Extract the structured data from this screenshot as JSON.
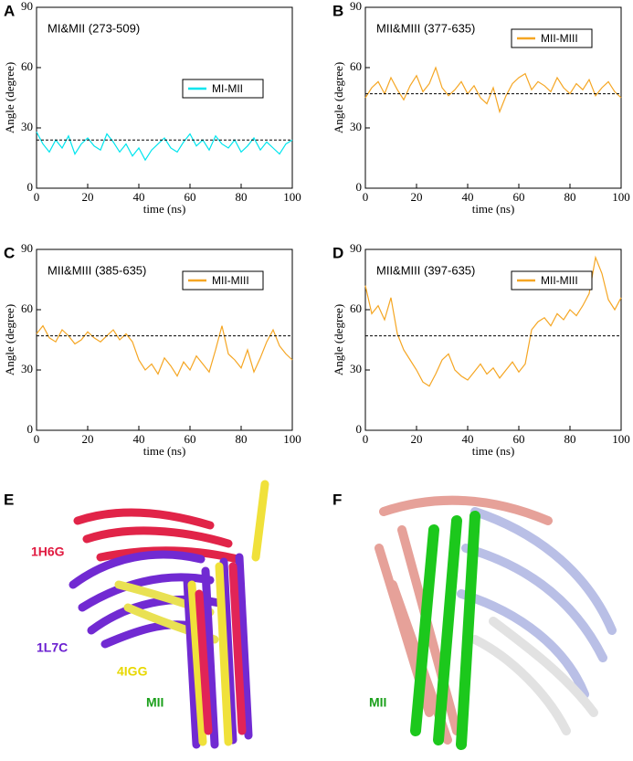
{
  "chart_data": [
    {
      "type": "line",
      "letter": "A",
      "title": "MI&MII (273-509)",
      "xlabel": "time (ns)",
      "ylabel": "Angle (degree)",
      "x": [
        0,
        2.5,
        5,
        7.5,
        10,
        12.5,
        15,
        17.5,
        20,
        22.5,
        25,
        27.5,
        30,
        32.5,
        35,
        37.5,
        40,
        42.5,
        45,
        47.5,
        50,
        52.5,
        55,
        57.5,
        60,
        62.5,
        65,
        67.5,
        70,
        72.5,
        75,
        77.5,
        80,
        82.5,
        85,
        87.5,
        90,
        92.5,
        95,
        97.5,
        100
      ],
      "series": [
        {
          "name": "MI-MII",
          "color": "#00e5ee",
          "values": [
            28,
            22,
            18,
            24,
            20,
            26,
            17,
            22,
            25,
            21,
            19,
            27,
            23,
            18,
            22,
            16,
            20,
            14,
            19,
            22,
            25,
            20,
            18,
            23,
            27,
            21,
            24,
            19,
            26,
            22,
            20,
            24,
            18,
            21,
            25,
            19,
            23,
            20,
            17,
            22,
            24
          ]
        }
      ],
      "reference": 24,
      "xlim": [
        0,
        100
      ],
      "ylim": [
        0,
        90
      ],
      "xticks": [
        0,
        20,
        40,
        60,
        80,
        100
      ],
      "yticks": [
        0,
        30,
        60,
        90
      ],
      "legend": "center right"
    },
    {
      "type": "line",
      "letter": "B",
      "title": "MII&MIII (377-635)",
      "xlabel": "time (ns)",
      "ylabel": "Angle (degree)",
      "x": [
        0,
        2.5,
        5,
        7.5,
        10,
        12.5,
        15,
        17.5,
        20,
        22.5,
        25,
        27.5,
        30,
        32.5,
        35,
        37.5,
        40,
        42.5,
        45,
        47.5,
        50,
        52.5,
        55,
        57.5,
        60,
        62.5,
        65,
        67.5,
        70,
        72.5,
        75,
        77.5,
        80,
        82.5,
        85,
        87.5,
        90,
        92.5,
        95,
        97.5,
        100
      ],
      "series": [
        {
          "name": "MII-MIII",
          "color": "#f5a623",
          "values": [
            45,
            50,
            53,
            47,
            55,
            49,
            44,
            51,
            56,
            48,
            52,
            60,
            50,
            46,
            49,
            53,
            47,
            51,
            45,
            42,
            50,
            38,
            46,
            52,
            55,
            57,
            49,
            53,
            51,
            48,
            55,
            50,
            47,
            52,
            49,
            54,
            46,
            50,
            53,
            48,
            45
          ]
        }
      ],
      "reference": 47,
      "xlim": [
        0,
        100
      ],
      "ylim": [
        0,
        90
      ],
      "xticks": [
        0,
        20,
        40,
        60,
        80,
        100
      ],
      "yticks": [
        0,
        30,
        60,
        90
      ],
      "legend": "upper right"
    },
    {
      "type": "line",
      "letter": "C",
      "title": "MII&MIII (385-635)",
      "xlabel": "time (ns)",
      "ylabel": "Angle (degree)",
      "x": [
        0,
        2.5,
        5,
        7.5,
        10,
        12.5,
        15,
        17.5,
        20,
        22.5,
        25,
        27.5,
        30,
        32.5,
        35,
        37.5,
        40,
        42.5,
        45,
        47.5,
        50,
        52.5,
        55,
        57.5,
        60,
        62.5,
        65,
        67.5,
        70,
        72.5,
        75,
        77.5,
        80,
        82.5,
        85,
        87.5,
        90,
        92.5,
        95,
        97.5,
        100
      ],
      "series": [
        {
          "name": "MII-MIII",
          "color": "#f5a623",
          "values": [
            48,
            52,
            46,
            44,
            50,
            47,
            43,
            45,
            49,
            46,
            44,
            47,
            50,
            45,
            48,
            44,
            35,
            30,
            33,
            28,
            36,
            32,
            27,
            34,
            30,
            37,
            33,
            29,
            40,
            52,
            38,
            35,
            31,
            40,
            29,
            36,
            44,
            50,
            42,
            38,
            35
          ]
        }
      ],
      "reference": 47,
      "xlim": [
        0,
        100
      ],
      "ylim": [
        0,
        90
      ],
      "xticks": [
        0,
        20,
        40,
        60,
        80,
        100
      ],
      "yticks": [
        0,
        30,
        60,
        90
      ],
      "legend": "upper right"
    },
    {
      "type": "line",
      "letter": "D",
      "title": "MII&MIII (397-635)",
      "xlabel": "time (ns)",
      "ylabel": "Angle (degree)",
      "x": [
        0,
        2.5,
        5,
        7.5,
        10,
        12.5,
        15,
        17.5,
        20,
        22.5,
        25,
        27.5,
        30,
        32.5,
        35,
        37.5,
        40,
        42.5,
        45,
        47.5,
        50,
        52.5,
        55,
        57.5,
        60,
        62.5,
        65,
        67.5,
        70,
        72.5,
        75,
        77.5,
        80,
        82.5,
        85,
        87.5,
        90,
        92.5,
        95,
        97.5,
        100
      ],
      "series": [
        {
          "name": "MII-MIII",
          "color": "#f5a623",
          "values": [
            72,
            58,
            62,
            55,
            66,
            48,
            40,
            35,
            30,
            24,
            22,
            28,
            35,
            38,
            30,
            27,
            25,
            29,
            33,
            28,
            31,
            26,
            30,
            34,
            29,
            33,
            50,
            54,
            56,
            52,
            58,
            55,
            60,
            57,
            62,
            68,
            86,
            78,
            65,
            60,
            66
          ]
        }
      ],
      "reference": 47,
      "xlim": [
        0,
        100
      ],
      "ylim": [
        0,
        90
      ],
      "xticks": [
        0,
        20,
        40,
        60,
        80,
        100
      ],
      "yticks": [
        0,
        30,
        60,
        90
      ],
      "legend": "upper right"
    }
  ],
  "structures": [
    {
      "letter": "E",
      "labels": [
        "1H6G",
        "1L7C",
        "4IGG",
        "MII"
      ]
    },
    {
      "letter": "F",
      "labels": [
        "MII"
      ]
    }
  ]
}
